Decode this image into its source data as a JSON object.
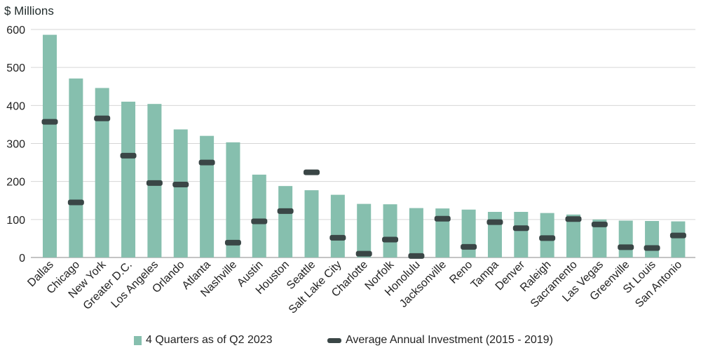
{
  "chart_data": {
    "type": "bar",
    "ylabel": "$ Millions",
    "ylim": [
      0,
      600
    ],
    "yticks": [
      0,
      100,
      200,
      300,
      400,
      500,
      600
    ],
    "grid": true,
    "legend_position": "bottom",
    "categories": [
      "Dallas",
      "Chicago",
      "New York",
      "Greater D.C.",
      "Los Angeles",
      "Orlando",
      "Atlanta",
      "Nashville",
      "Austin",
      "Houston",
      "Seattle",
      "Salt Lake City",
      "Charlotte",
      "Norfolk",
      "Honolulu",
      "Jacksonville",
      "Reno",
      "Tampa",
      "Denver",
      "Raleigh",
      "Sacramento",
      "Las Vegas",
      "Greenville",
      "St Louis",
      "San Antonio"
    ],
    "series": [
      {
        "name": "4 Quarters as of Q2 2023",
        "kind": "bar",
        "color": "#86bfae",
        "values": [
          586,
          471,
          446,
          410,
          404,
          337,
          320,
          303,
          218,
          188,
          177,
          165,
          141,
          140,
          130,
          129,
          126,
          120,
          120,
          117,
          113,
          100,
          97,
          96,
          95
        ]
      },
      {
        "name": "Average Annual Investment (2015 - 2019)",
        "kind": "marker",
        "color": "#3a4646",
        "values": [
          357,
          145,
          366,
          268,
          196,
          192,
          250,
          39,
          95,
          122,
          224,
          52,
          10,
          47,
          4,
          102,
          28,
          93,
          77,
          51,
          101,
          87,
          27,
          25,
          58
        ]
      }
    ]
  }
}
